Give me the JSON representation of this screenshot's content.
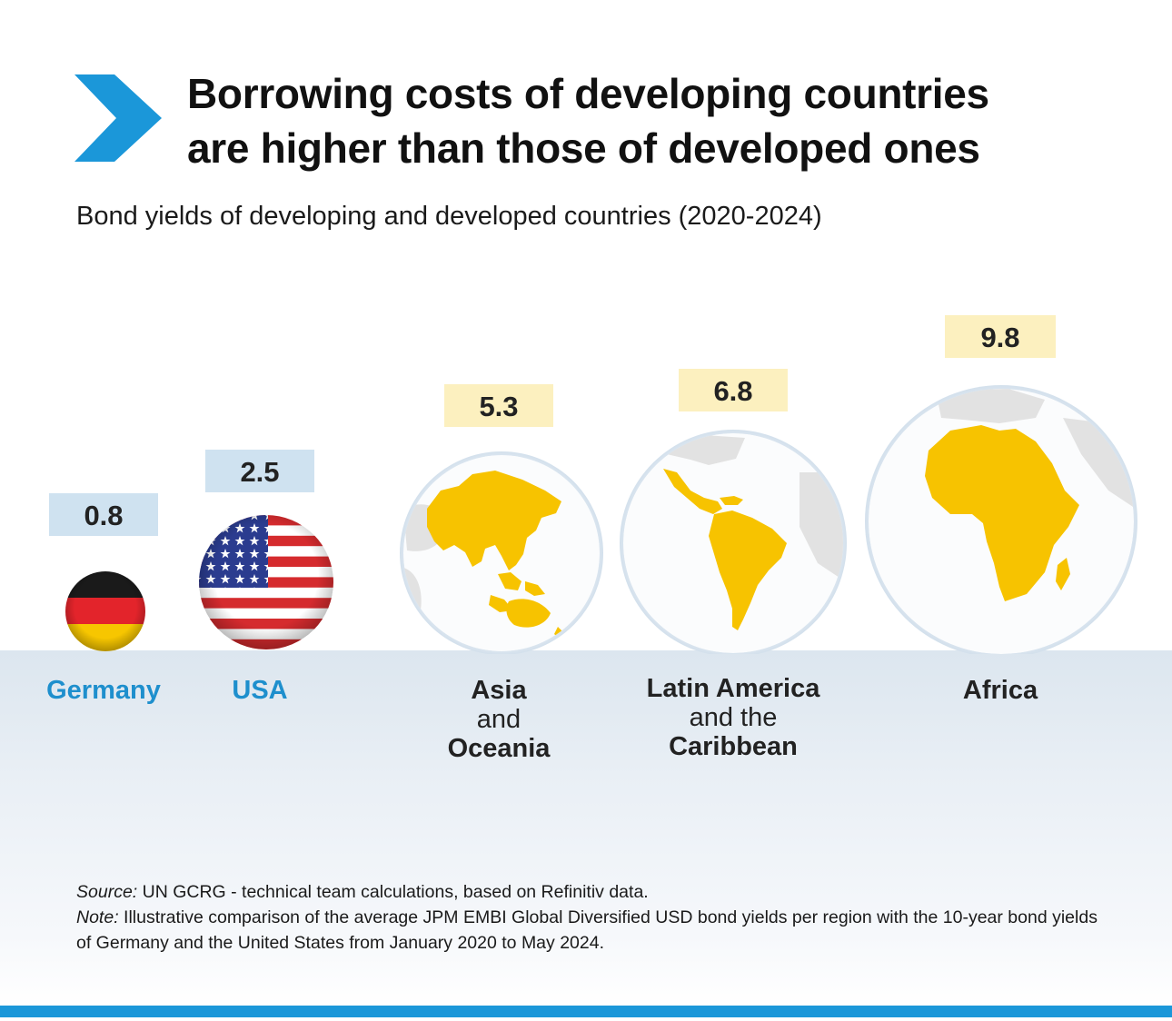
{
  "header": {
    "title_line1": "Borrowing costs of developing countries",
    "title_line2": "are higher than those of developed ones",
    "subtitle": "Bond yields of developing and developed countries (2020-2024)"
  },
  "colors": {
    "accent_blue": "#1b97d9",
    "developed_label_blue": "#1e8fcd",
    "developed_box": "#cfe2f0",
    "developing_box": "#fcf0bf",
    "landmass_yellow": "#f7c300",
    "globe_grey": "#e2e2e2"
  },
  "chart_data": {
    "type": "bubble",
    "title": "Borrowing costs of developing countries are higher than those of developed ones",
    "subtitle": "Bond yields of developing and developed countries (2020-2024)",
    "categories": [
      "Germany",
      "USA",
      "Asia and Oceania",
      "Latin America and the Caribbean",
      "Africa"
    ],
    "values": [
      0.8,
      2.5,
      5.3,
      6.8,
      9.8
    ],
    "value_labels": [
      "0.8",
      "2.5",
      "5.3",
      "6.8",
      "9.8"
    ],
    "groups": [
      "developed",
      "developed",
      "developing",
      "developing",
      "developing"
    ],
    "icons": [
      "germany-flag",
      "usa-flag",
      "asia-oceania-globe",
      "latin-america-globe",
      "africa-globe"
    ],
    "unit": "bond yield",
    "labels": {
      "germany": "Germany",
      "usa": "USA",
      "asia": [
        "Asia",
        "and",
        "Oceania"
      ],
      "latam": [
        "Latin America",
        "and the",
        "Caribbean"
      ],
      "africa": "Africa"
    }
  },
  "footnote": {
    "source_prefix": "Source:",
    "source_text": " UN GCRG - technical team calculations, based on Refinitiv data.",
    "note_prefix": "Note:",
    "note_text": " Illustrative comparison of the average JPM EMBI Global Diversified USD bond yields per region with the 10-year bond yields of Germany and the United States from January 2020 to May 2024."
  }
}
